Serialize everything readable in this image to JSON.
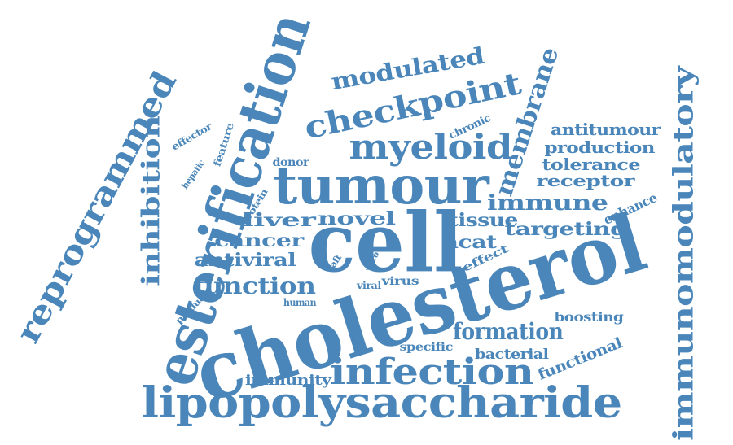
{
  "colors": {
    "word": "#4a86b9",
    "background": "#ffffff"
  },
  "words": [
    {
      "text": "cholesterol",
      "name": "word-cholesterol"
    },
    {
      "text": "cell",
      "name": "word-cell"
    },
    {
      "text": "tumour",
      "name": "word-tumour"
    },
    {
      "text": "esterification",
      "name": "word-esterification"
    },
    {
      "text": "lipopolysaccharide",
      "name": "word-lipopolysaccharide"
    },
    {
      "text": "infection",
      "name": "word-infection"
    },
    {
      "text": "immunomodulatory",
      "name": "word-immunomodulatory"
    },
    {
      "text": "reprogrammed",
      "name": "word-reprogrammed"
    },
    {
      "text": "myeloid",
      "name": "word-myeloid"
    },
    {
      "text": "checkpoint",
      "name": "word-checkpoint"
    },
    {
      "text": "membrane",
      "name": "word-membrane"
    },
    {
      "text": "inhibition",
      "name": "word-inhibition"
    },
    {
      "text": "modulated",
      "name": "word-modulated"
    },
    {
      "text": "function",
      "name": "word-function"
    },
    {
      "text": "formation",
      "name": "word-formation"
    },
    {
      "text": "immune",
      "name": "word-immune"
    },
    {
      "text": "targeting",
      "name": "word-targeting"
    },
    {
      "text": "novel",
      "name": "word-novel"
    },
    {
      "text": "liver",
      "name": "word-liver"
    },
    {
      "text": "cancer",
      "name": "word-cancer"
    },
    {
      "text": "antiviral",
      "name": "word-antiviral"
    },
    {
      "text": "tissue",
      "name": "word-tissue"
    },
    {
      "text": "acat",
      "name": "word-acat"
    },
    {
      "text": "antitumour",
      "name": "word-antitumour"
    },
    {
      "text": "production",
      "name": "word-production"
    },
    {
      "text": "tolerance",
      "name": "word-tolerance"
    },
    {
      "text": "receptor",
      "name": "word-receptor"
    },
    {
      "text": "enhance",
      "name": "word-enhance"
    },
    {
      "text": "functional",
      "name": "word-functional"
    },
    {
      "text": "bacterial",
      "name": "word-bacterial"
    },
    {
      "text": "boosting",
      "name": "word-boosting"
    },
    {
      "text": "immunity",
      "name": "word-immunity"
    },
    {
      "text": "specific",
      "name": "word-specific"
    },
    {
      "text": "human",
      "name": "word-human"
    },
    {
      "text": "viral",
      "name": "word-viral"
    },
    {
      "text": "virus",
      "name": "word-virus"
    },
    {
      "text": "effect",
      "name": "word-effect"
    },
    {
      "text": "donor",
      "name": "word-donor"
    },
    {
      "text": "chronic",
      "name": "word-chronic"
    },
    {
      "text": "effector",
      "name": "word-effector"
    },
    {
      "text": "feature",
      "name": "word-feature"
    },
    {
      "text": "hepatic",
      "name": "word-hepatic"
    },
    {
      "text": "protein",
      "name": "word-protein"
    },
    {
      "text": "raft",
      "name": "word-raft"
    },
    {
      "text": "vitro",
      "name": "word-vitro"
    },
    {
      "text": "product",
      "name": "word-product"
    }
  ]
}
